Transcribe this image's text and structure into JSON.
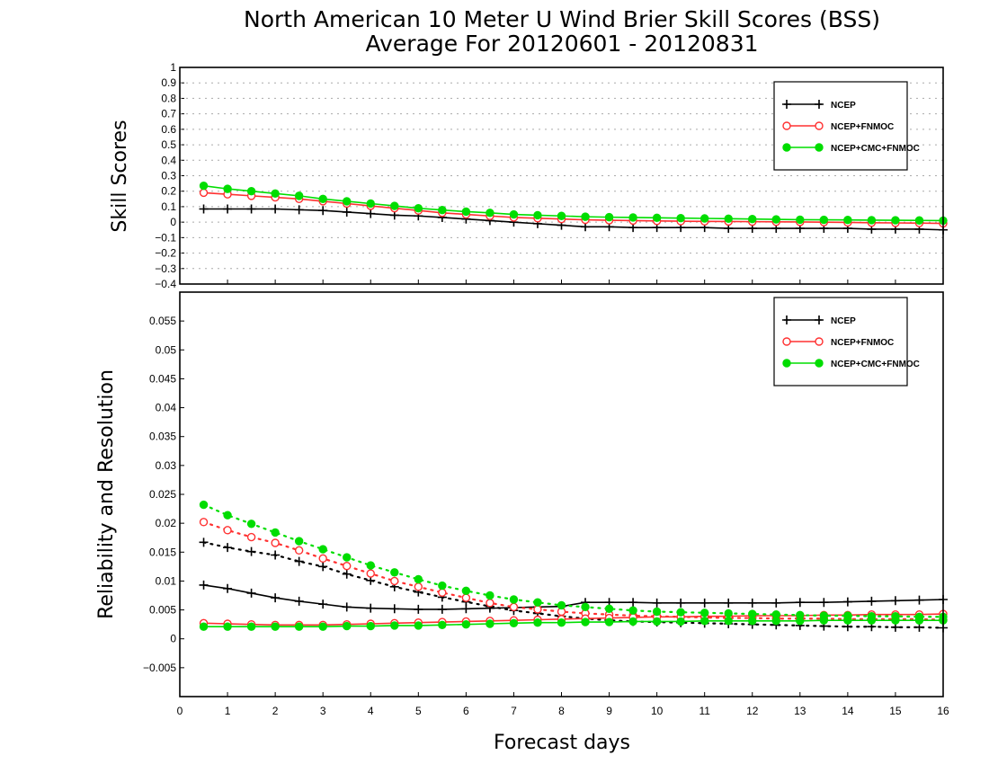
{
  "chart_data": {
    "title": "North American 10 Meter U Wind Brier Skill Scores (BSS)",
    "subtitle": "Average For 20120601 - 20120831",
    "xlabel": "Forecast days",
    "x_ticks": [
      "0",
      "1",
      "2",
      "3",
      "4",
      "5",
      "6",
      "7",
      "8",
      "9",
      "10",
      "11",
      "12",
      "13",
      "14",
      "15",
      "16"
    ],
    "xlim": [
      0,
      16
    ],
    "x": [
      0.5,
      1,
      1.5,
      2,
      2.5,
      3,
      3.5,
      4,
      4.5,
      5,
      5.5,
      6,
      6.5,
      7,
      7.5,
      8,
      8.5,
      9,
      9.5,
      10,
      10.5,
      11,
      11.5,
      12,
      12.5,
      13,
      13.5,
      14,
      14.5,
      15,
      15.5,
      16
    ],
    "colors": {
      "NCEP": "#000000",
      "NCEP+FNMOC": "#ff3030",
      "NCEP+CMC+FNMOC": "#00dd00"
    },
    "panels": [
      {
        "type": "line",
        "ylabel": "Skill Scores",
        "ylim": [
          -0.4,
          1
        ],
        "y_ticks": [
          "1",
          "0.9",
          "0.8",
          "0.7",
          "0.6",
          "0.5",
          "0.4",
          "0.3",
          "0.2",
          "0.1",
          "0",
          "−0.1",
          "−0.2",
          "−0.3",
          "−0.4"
        ],
        "grid": true,
        "legend_position": "top-right",
        "legend": [
          "NCEP",
          "NCEP+FNMOC",
          "NCEP+CMC+FNMOC"
        ],
        "series": [
          {
            "name": "NCEP",
            "marker": "plus",
            "style": "solid",
            "values": [
              0.085,
              0.085,
              0.085,
              0.085,
              0.08,
              0.075,
              0.065,
              0.055,
              0.045,
              0.04,
              0.03,
              0.02,
              0.01,
              0.0,
              -0.01,
              -0.02,
              -0.03,
              -0.03,
              -0.035,
              -0.035,
              -0.035,
              -0.035,
              -0.04,
              -0.04,
              -0.04,
              -0.04,
              -0.04,
              -0.04,
              -0.045,
              -0.045,
              -0.045,
              -0.05
            ]
          },
          {
            "name": "NCEP+FNMOC",
            "marker": "open-circle",
            "style": "solid",
            "values": [
              0.19,
              0.18,
              0.17,
              0.16,
              0.15,
              0.135,
              0.12,
              0.105,
              0.09,
              0.075,
              0.06,
              0.05,
              0.04,
              0.03,
              0.025,
              0.02,
              0.015,
              0.012,
              0.01,
              0.008,
              0.006,
              0.005,
              0.004,
              0.003,
              0.002,
              0.001,
              0.0,
              -0.002,
              -0.004,
              -0.005,
              -0.006,
              -0.008
            ]
          },
          {
            "name": "NCEP+CMC+FNMOC",
            "marker": "filled-circle",
            "style": "solid",
            "values": [
              0.235,
              0.215,
              0.2,
              0.185,
              0.17,
              0.15,
              0.135,
              0.12,
              0.105,
              0.09,
              0.078,
              0.068,
              0.06,
              0.05,
              0.045,
              0.04,
              0.035,
              0.032,
              0.03,
              0.028,
              0.026,
              0.024,
              0.022,
              0.02,
              0.018,
              0.016,
              0.015,
              0.014,
              0.013,
              0.012,
              0.011,
              0.01
            ]
          }
        ]
      },
      {
        "type": "line",
        "ylabel": "Reliability and Resolution",
        "ylim": [
          -0.01,
          0.06
        ],
        "y_ticks": [
          "0.055",
          "0.05",
          "0.045",
          "0.04",
          "0.035",
          "0.03",
          "0.025",
          "0.02",
          "0.015",
          "0.01",
          "0.005",
          "0",
          "−0.005"
        ],
        "grid": false,
        "legend_position": "top-right",
        "legend": [
          "NCEP",
          "NCEP+FNMOC",
          "NCEP+CMC+FNMOC"
        ],
        "series": [
          {
            "name": "NCEP",
            "kind": "resolution",
            "marker": "plus",
            "style": "dotted",
            "values": [
              0.0167,
              0.0158,
              0.0151,
              0.0145,
              0.0134,
              0.0125,
              0.0112,
              0.0101,
              0.009,
              0.0081,
              0.0072,
              0.0064,
              0.0056,
              0.0049,
              0.0044,
              0.0039,
              0.0035,
              0.0032,
              0.003,
              0.0029,
              0.0028,
              0.0027,
              0.0026,
              0.0025,
              0.0024,
              0.0023,
              0.0022,
              0.0021,
              0.0021,
              0.002,
              0.002,
              0.0019
            ]
          },
          {
            "name": "NCEP",
            "kind": "reliability",
            "marker": "plus",
            "style": "solid",
            "values": [
              0.0093,
              0.0087,
              0.0079,
              0.0071,
              0.0065,
              0.006,
              0.0055,
              0.0053,
              0.0052,
              0.0051,
              0.0051,
              0.0052,
              0.0053,
              0.0054,
              0.0055,
              0.0056,
              0.0063,
              0.0063,
              0.0063,
              0.0062,
              0.0062,
              0.0062,
              0.0062,
              0.0062,
              0.0062,
              0.0063,
              0.0063,
              0.0064,
              0.0065,
              0.0066,
              0.0067,
              0.0068
            ]
          },
          {
            "name": "NCEP+FNMOC",
            "kind": "resolution",
            "marker": "open-circle",
            "style": "dotted",
            "values": [
              0.0202,
              0.0188,
              0.0176,
              0.0166,
              0.0153,
              0.0139,
              0.0126,
              0.0113,
              0.01,
              0.009,
              0.008,
              0.0071,
              0.0062,
              0.0055,
              0.0051,
              0.0047,
              0.0044,
              0.0042,
              0.004,
              0.0039,
              0.0038,
              0.0037,
              0.0036,
              0.0036,
              0.0035,
              0.0035,
              0.0035,
              0.0034,
              0.0034,
              0.0034,
              0.0034,
              0.0033
            ]
          },
          {
            "name": "NCEP+FNMOC",
            "kind": "reliability",
            "marker": "open-circle",
            "style": "solid",
            "values": [
              0.0027,
              0.0026,
              0.0025,
              0.0024,
              0.0024,
              0.0024,
              0.0025,
              0.0026,
              0.0027,
              0.0028,
              0.0029,
              0.003,
              0.0031,
              0.0032,
              0.0033,
              0.0034,
              0.0035,
              0.0036,
              0.0037,
              0.0038,
              0.0038,
              0.0039,
              0.0039,
              0.004,
              0.004,
              0.004,
              0.0041,
              0.0041,
              0.0042,
              0.0042,
              0.0042,
              0.0043
            ]
          },
          {
            "name": "NCEP+CMC+FNMOC",
            "kind": "resolution",
            "marker": "filled-circle",
            "style": "dotted",
            "values": [
              0.0232,
              0.0214,
              0.0199,
              0.0184,
              0.0169,
              0.0155,
              0.0141,
              0.0127,
              0.0115,
              0.0103,
              0.0092,
              0.0083,
              0.0075,
              0.0068,
              0.0063,
              0.0058,
              0.0055,
              0.0052,
              0.0049,
              0.0047,
              0.0046,
              0.0045,
              0.0044,
              0.0043,
              0.0042,
              0.0041,
              0.004,
              0.004,
              0.0039,
              0.0039,
              0.0038,
              0.0038
            ]
          },
          {
            "name": "NCEP+CMC+FNMOC",
            "kind": "reliability",
            "marker": "filled-circle",
            "style": "solid",
            "values": [
              0.0021,
              0.0021,
              0.0021,
              0.0021,
              0.0021,
              0.0021,
              0.0022,
              0.0022,
              0.0023,
              0.0023,
              0.0024,
              0.0025,
              0.0026,
              0.0027,
              0.0028,
              0.0028,
              0.0029,
              0.0029,
              0.003,
              0.003,
              0.003,
              0.0031,
              0.0031,
              0.0031,
              0.0031,
              0.0031,
              0.0032,
              0.0032,
              0.0032,
              0.0032,
              0.0032,
              0.0032
            ]
          }
        ]
      }
    ]
  }
}
